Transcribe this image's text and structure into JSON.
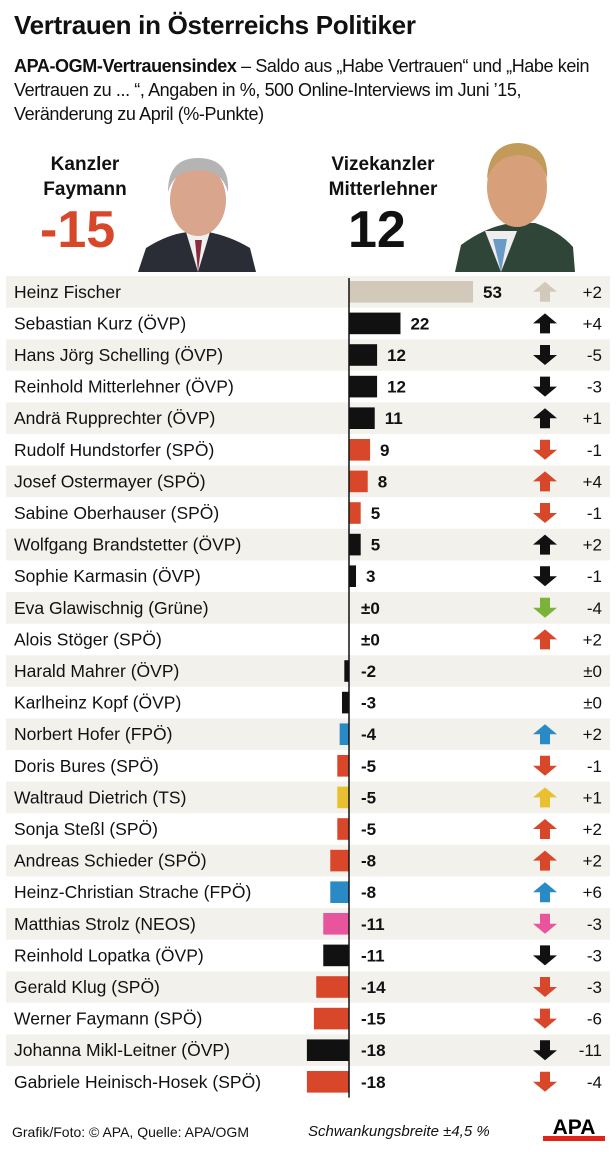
{
  "title": "Vertrauen in Österreichs Politiker",
  "subtitle_bold": "APA-OGM-Vertrauensindex",
  "subtitle": " – Saldo aus „Habe Vertrauen“ und „Habe kein Vertrauen zu ... “, Angaben in %, 500 Online-Interviews im Juni ’15, Veränderung zu April (%-Punkte)",
  "highlight_left": {
    "label1": "Kanzler",
    "label2": "Faymann",
    "value": "-15",
    "color": "#d9472b"
  },
  "highlight_right": {
    "label1": "Vizekanzler",
    "label2": "Mitterlehner",
    "value": "12",
    "color": "#111111"
  },
  "party_colors": {
    "ÖVP": "#111111",
    "SPÖ": "#d9472b",
    "FPÖ": "#2a8ac6",
    "Grüne": "#7bb23a",
    "TS": "#e8c030",
    "NEOS": "#e9559c",
    "none": "#d3c9bb"
  },
  "chart_data": {
    "type": "bar",
    "orientation": "horizontal",
    "categories": [
      "Heinz Fischer",
      "Sebastian Kurz (ÖVP)",
      "Hans Jörg Schelling (ÖVP)",
      "Reinhold Mitterlehner (ÖVP)",
      "Andrä Rupprechter (ÖVP)",
      "Rudolf Hundstorfer (SPÖ)",
      "Josef Ostermayer (SPÖ)",
      "Sabine Oberhauser (SPÖ)",
      "Wolfgang Brandstetter (ÖVP)",
      "Sophie Karmasin (ÖVP)",
      "Eva Glawischnig (Grüne)",
      "Alois Stöger (SPÖ)",
      "Harald Mahrer (ÖVP)",
      "Karlheinz Kopf (ÖVP)",
      "Norbert Hofer (FPÖ)",
      "Doris Bures (SPÖ)",
      "Waltraud Dietrich (TS)",
      "Sonja Steßl (SPÖ)",
      "Andreas Schieder (SPÖ)",
      "Heinz-Christian Strache (FPÖ)",
      "Matthias Strolz (NEOS)",
      "Reinhold Lopatka (ÖVP)",
      "Gerald Klug (SPÖ)",
      "Werner Faymann (SPÖ)",
      "Johanna Mikl-Leitner (ÖVP)",
      "Gabriele Heinisch-Hosek (SPÖ)"
    ],
    "parties": [
      "none",
      "ÖVP",
      "ÖVP",
      "ÖVP",
      "ÖVP",
      "SPÖ",
      "SPÖ",
      "SPÖ",
      "ÖVP",
      "ÖVP",
      "Grüne",
      "SPÖ",
      "ÖVP",
      "ÖVP",
      "FPÖ",
      "SPÖ",
      "TS",
      "SPÖ",
      "SPÖ",
      "FPÖ",
      "NEOS",
      "ÖVP",
      "SPÖ",
      "SPÖ",
      "ÖVP",
      "SPÖ"
    ],
    "values": [
      53,
      22,
      12,
      12,
      11,
      9,
      8,
      5,
      5,
      3,
      0,
      0,
      -2,
      -3,
      -4,
      -5,
      -5,
      -5,
      -8,
      -8,
      -11,
      -11,
      -14,
      -15,
      -18,
      -18
    ],
    "value_labels": [
      "53",
      "22",
      "12",
      "12",
      "11",
      "9",
      "8",
      "5",
      "5",
      "3",
      "±0",
      "±0",
      "-2",
      "-3",
      "-4",
      "-5",
      "-5",
      "-5",
      "-8",
      "-8",
      "-11",
      "-11",
      "-14",
      "-15",
      "-18",
      "-18"
    ],
    "changes": [
      2,
      4,
      -5,
      -3,
      1,
      -1,
      4,
      -1,
      2,
      -1,
      -4,
      2,
      0,
      0,
      2,
      -1,
      1,
      2,
      2,
      6,
      -3,
      -3,
      -3,
      -6,
      -11,
      -4
    ],
    "change_labels": [
      "+2",
      "+4",
      "-5",
      "-3",
      "+1",
      "-1",
      "+4",
      "-1",
      "+2",
      "-1",
      "-4",
      "+2",
      "±0",
      "±0",
      "+2",
      "-1",
      "+1",
      "+2",
      "+2",
      "+6",
      "-3",
      "-3",
      "-3",
      "-6",
      "-11",
      "-4"
    ]
  },
  "footer": {
    "source": "Grafik/Foto: © APA, Quelle: APA/OGM",
    "margin": "Schwankungsbreite ±4,5 %",
    "logo": "APA"
  }
}
